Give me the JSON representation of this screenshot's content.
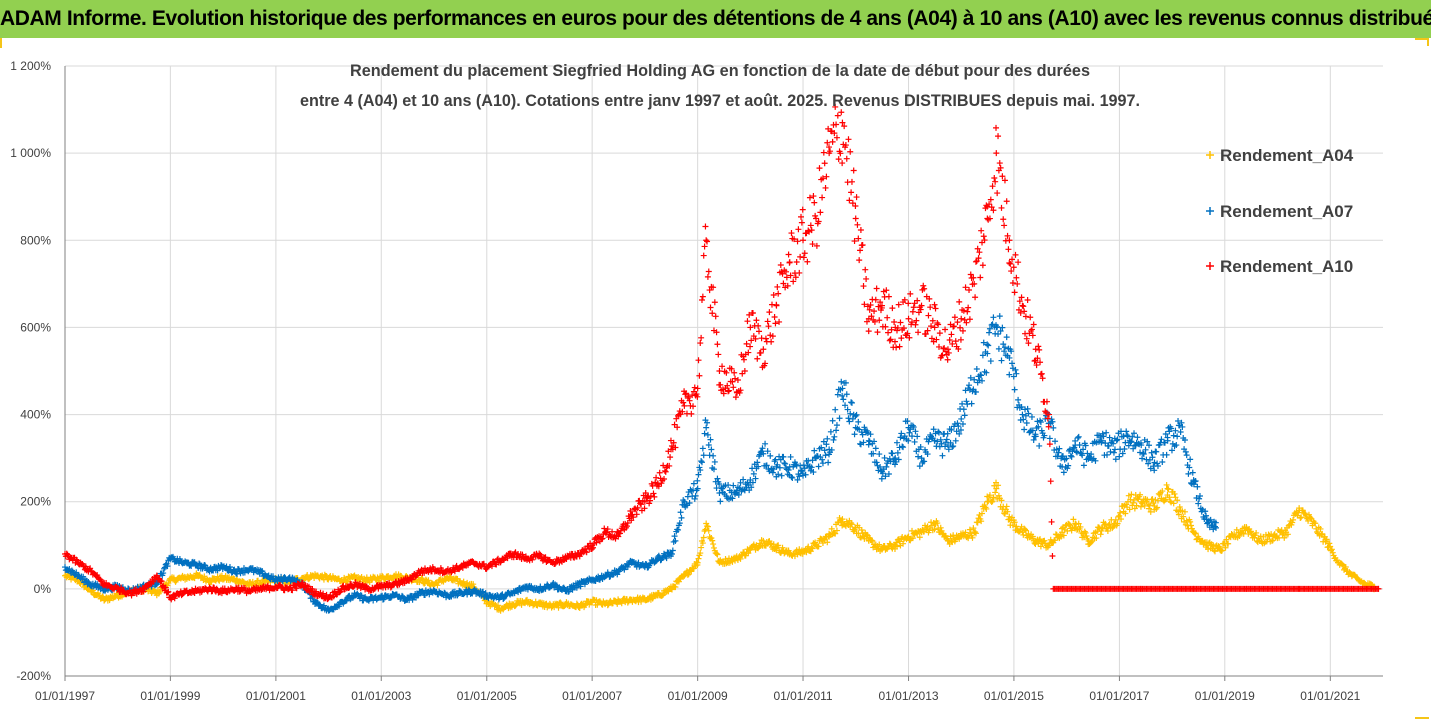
{
  "banner": {
    "title": "ADAM Informe. Evolution historique des performances en euros pour des détentions de 4 ans (A04) à 10 ans (A10) avec les revenus connus distribués"
  },
  "colors": {
    "banner_bg": "#92d050",
    "A04": "#ffc000",
    "A07": "#0070c0",
    "A10": "#ff0000",
    "grid": "#d9d9d9",
    "corner": "#f5c518"
  },
  "chart_data": {
    "type": "scatter",
    "title_lines": [
      "Rendement du placement Siegfried  Holding AG en fonction de la date de début pour des durées",
      "entre 4 (A04) et 10 ans (A10). Cotations entre janv 1997 et août. 2025. Revenus DISTRIBUES depuis mai. 1997."
    ],
    "xlabel": "",
    "ylabel": "",
    "x_axis_type": "date",
    "xlim": [
      "1997-01-01",
      "2022-01-01"
    ],
    "ylim": [
      -200,
      1200
    ],
    "y_ticks": [
      "1 200%",
      "1 000%",
      "800%",
      "600%",
      "400%",
      "200%",
      "0%",
      "-200%"
    ],
    "y_tick_values": [
      1200,
      1000,
      800,
      600,
      400,
      200,
      0,
      -200
    ],
    "x_ticks": [
      "01/01/1997",
      "01/01/1999",
      "01/01/2001",
      "01/01/2003",
      "01/01/2005",
      "01/01/2007",
      "01/01/2009",
      "01/01/2011",
      "01/01/2013",
      "01/01/2015",
      "01/01/2017",
      "01/01/2019",
      "01/01/2021"
    ],
    "grid": true,
    "legend_position": "right",
    "marker": "+",
    "series": [
      {
        "name": "Rendement_A04",
        "color": "#ffc000",
        "points": [
          [
            "1997-01-01",
            30
          ],
          [
            "1997-04-01",
            20
          ],
          [
            "1997-07-01",
            -5
          ],
          [
            "1997-10-01",
            -25
          ],
          [
            "1998-01-01",
            -15
          ],
          [
            "1998-04-01",
            -5
          ],
          [
            "1998-07-01",
            0
          ],
          [
            "1998-10-01",
            -10
          ],
          [
            "1999-01-01",
            20
          ],
          [
            "1999-04-01",
            25
          ],
          [
            "1999-07-01",
            30
          ],
          [
            "1999-10-01",
            20
          ],
          [
            "2000-01-01",
            25
          ],
          [
            "2000-04-01",
            20
          ],
          [
            "2000-07-01",
            10
          ],
          [
            "2000-10-01",
            15
          ],
          [
            "2001-01-01",
            20
          ],
          [
            "2001-04-01",
            15
          ],
          [
            "2001-07-01",
            25
          ],
          [
            "2001-10-01",
            30
          ],
          [
            "2002-01-01",
            25
          ],
          [
            "2002-04-01",
            20
          ],
          [
            "2002-07-01",
            25
          ],
          [
            "2002-10-01",
            20
          ],
          [
            "2003-01-01",
            25
          ],
          [
            "2003-04-01",
            30
          ],
          [
            "2003-07-01",
            25
          ],
          [
            "2003-10-01",
            20
          ],
          [
            "2004-01-01",
            10
          ],
          [
            "2004-04-01",
            25
          ],
          [
            "2004-07-01",
            15
          ],
          [
            "2004-10-01",
            5
          ],
          [
            "2005-01-01",
            -30
          ],
          [
            "2005-04-01",
            -45
          ],
          [
            "2005-07-01",
            -35
          ],
          [
            "2005-10-01",
            -30
          ],
          [
            "2006-01-01",
            -35
          ],
          [
            "2006-04-01",
            -40
          ],
          [
            "2006-07-01",
            -35
          ],
          [
            "2006-10-01",
            -40
          ],
          [
            "2007-01-01",
            -30
          ],
          [
            "2007-04-01",
            -35
          ],
          [
            "2007-07-01",
            -30
          ],
          [
            "2007-10-01",
            -25
          ],
          [
            "2008-01-01",
            -25
          ],
          [
            "2008-04-01",
            -15
          ],
          [
            "2008-07-01",
            0
          ],
          [
            "2008-10-01",
            30
          ],
          [
            "2009-01-01",
            60
          ],
          [
            "2009-03-01",
            150
          ],
          [
            "2009-06-01",
            60
          ],
          [
            "2009-10-01",
            70
          ],
          [
            "2010-01-01",
            90
          ],
          [
            "2010-04-01",
            110
          ],
          [
            "2010-07-01",
            95
          ],
          [
            "2010-10-01",
            80
          ],
          [
            "2011-01-01",
            85
          ],
          [
            "2011-04-01",
            100
          ],
          [
            "2011-07-01",
            120
          ],
          [
            "2011-10-01",
            160
          ],
          [
            "2012-01-01",
            140
          ],
          [
            "2012-04-01",
            110
          ],
          [
            "2012-07-01",
            90
          ],
          [
            "2012-10-01",
            100
          ],
          [
            "2013-01-01",
            120
          ],
          [
            "2013-04-01",
            130
          ],
          [
            "2013-07-01",
            150
          ],
          [
            "2013-10-01",
            110
          ],
          [
            "2014-01-01",
            120
          ],
          [
            "2014-04-01",
            130
          ],
          [
            "2014-07-01",
            200
          ],
          [
            "2014-09-01",
            230
          ],
          [
            "2014-12-01",
            160
          ],
          [
            "2015-03-01",
            130
          ],
          [
            "2015-06-01",
            110
          ],
          [
            "2015-09-01",
            100
          ],
          [
            "2015-12-01",
            130
          ],
          [
            "2016-03-01",
            150
          ],
          [
            "2016-06-01",
            110
          ],
          [
            "2016-09-01",
            140
          ],
          [
            "2016-12-01",
            150
          ],
          [
            "2017-03-01",
            200
          ],
          [
            "2017-06-01",
            200
          ],
          [
            "2017-09-01",
            190
          ],
          [
            "2017-12-01",
            230
          ],
          [
            "2018-03-01",
            180
          ],
          [
            "2018-06-01",
            130
          ],
          [
            "2018-09-01",
            100
          ],
          [
            "2018-12-01",
            90
          ],
          [
            "2019-03-01",
            120
          ],
          [
            "2019-06-01",
            140
          ],
          [
            "2019-09-01",
            110
          ],
          [
            "2019-12-01",
            120
          ],
          [
            "2020-03-01",
            130
          ],
          [
            "2020-06-01",
            180
          ],
          [
            "2020-09-01",
            150
          ],
          [
            "2020-12-01",
            110
          ],
          [
            "2021-03-01",
            60
          ],
          [
            "2021-06-01",
            30
          ],
          [
            "2021-09-01",
            10
          ],
          [
            "2021-11-01",
            5
          ]
        ]
      },
      {
        "name": "Rendement_A07",
        "color": "#0070c0",
        "points": [
          [
            "1997-01-01",
            50
          ],
          [
            "1997-04-01",
            30
          ],
          [
            "1997-07-01",
            10
          ],
          [
            "1997-10-01",
            0
          ],
          [
            "1998-01-01",
            5
          ],
          [
            "1998-04-01",
            -5
          ],
          [
            "1998-07-01",
            5
          ],
          [
            "1998-10-01",
            15
          ],
          [
            "1999-01-01",
            70
          ],
          [
            "1999-04-01",
            60
          ],
          [
            "1999-07-01",
            55
          ],
          [
            "1999-10-01",
            45
          ],
          [
            "2000-01-01",
            50
          ],
          [
            "2000-04-01",
            40
          ],
          [
            "2000-07-01",
            45
          ],
          [
            "2000-10-01",
            35
          ],
          [
            "2001-01-01",
            20
          ],
          [
            "2001-04-01",
            25
          ],
          [
            "2001-07-01",
            10
          ],
          [
            "2001-10-01",
            -30
          ],
          [
            "2002-01-01",
            -50
          ],
          [
            "2002-04-01",
            -30
          ],
          [
            "2002-07-01",
            -15
          ],
          [
            "2002-10-01",
            -25
          ],
          [
            "2003-01-01",
            -20
          ],
          [
            "2003-04-01",
            -15
          ],
          [
            "2003-07-01",
            -25
          ],
          [
            "2003-10-01",
            -10
          ],
          [
            "2004-01-01",
            -5
          ],
          [
            "2004-04-01",
            -15
          ],
          [
            "2004-07-01",
            -10
          ],
          [
            "2004-10-01",
            -5
          ],
          [
            "2005-01-01",
            -15
          ],
          [
            "2005-04-01",
            -20
          ],
          [
            "2005-07-01",
            -10
          ],
          [
            "2005-10-01",
            5
          ],
          [
            "2006-01-01",
            0
          ],
          [
            "2006-04-01",
            10
          ],
          [
            "2006-07-01",
            -5
          ],
          [
            "2006-10-01",
            10
          ],
          [
            "2007-01-01",
            20
          ],
          [
            "2007-04-01",
            30
          ],
          [
            "2007-07-01",
            40
          ],
          [
            "2007-10-01",
            60
          ],
          [
            "2008-01-01",
            50
          ],
          [
            "2008-04-01",
            70
          ],
          [
            "2008-07-01",
            80
          ],
          [
            "2008-10-01",
            200
          ],
          [
            "2009-01-01",
            230
          ],
          [
            "2009-03-01",
            370
          ],
          [
            "2009-06-01",
            220
          ],
          [
            "2009-10-01",
            220
          ],
          [
            "2010-01-01",
            250
          ],
          [
            "2010-04-01",
            310
          ],
          [
            "2010-07-01",
            280
          ],
          [
            "2010-10-01",
            280
          ],
          [
            "2011-01-01",
            260
          ],
          [
            "2011-04-01",
            300
          ],
          [
            "2011-07-01",
            320
          ],
          [
            "2011-10-01",
            460
          ],
          [
            "2012-01-01",
            370
          ],
          [
            "2012-04-01",
            340
          ],
          [
            "2012-07-01",
            270
          ],
          [
            "2012-10-01",
            300
          ],
          [
            "2013-01-01",
            370
          ],
          [
            "2013-04-01",
            300
          ],
          [
            "2013-07-01",
            340
          ],
          [
            "2013-10-01",
            330
          ],
          [
            "2014-01-01",
            390
          ],
          [
            "2014-04-01",
            480
          ],
          [
            "2014-07-01",
            540
          ],
          [
            "2014-09-01",
            600
          ],
          [
            "2014-12-01",
            530
          ],
          [
            "2015-03-01",
            400
          ],
          [
            "2015-06-01",
            350
          ],
          [
            "2015-09-01",
            380
          ],
          [
            "2015-12-01",
            280
          ],
          [
            "2016-03-01",
            330
          ],
          [
            "2016-06-01",
            300
          ],
          [
            "2016-09-01",
            340
          ],
          [
            "2016-12-01",
            320
          ],
          [
            "2017-03-01",
            350
          ],
          [
            "2017-06-01",
            330
          ],
          [
            "2017-09-01",
            290
          ],
          [
            "2017-12-01",
            340
          ],
          [
            "2018-03-01",
            360
          ],
          [
            "2018-06-01",
            240
          ],
          [
            "2018-09-01",
            150
          ],
          [
            "2018-11-01",
            140
          ]
        ]
      },
      {
        "name": "Rendement_A10",
        "color": "#ff0000",
        "points": [
          [
            "1997-01-01",
            80
          ],
          [
            "1997-04-01",
            60
          ],
          [
            "1997-07-01",
            40
          ],
          [
            "1997-10-01",
            10
          ],
          [
            "1998-01-01",
            0
          ],
          [
            "1998-04-01",
            -10
          ],
          [
            "1998-07-01",
            0
          ],
          [
            "1998-10-01",
            30
          ],
          [
            "1999-01-01",
            -20
          ],
          [
            "1999-04-01",
            -10
          ],
          [
            "1999-07-01",
            -5
          ],
          [
            "1999-10-01",
            0
          ],
          [
            "2000-01-01",
            -5
          ],
          [
            "2000-04-01",
            0
          ],
          [
            "2000-07-01",
            -5
          ],
          [
            "2000-10-01",
            0
          ],
          [
            "2001-01-01",
            5
          ],
          [
            "2001-04-01",
            0
          ],
          [
            "2001-07-01",
            10
          ],
          [
            "2001-10-01",
            -10
          ],
          [
            "2002-01-01",
            -20
          ],
          [
            "2002-04-01",
            0
          ],
          [
            "2002-07-01",
            10
          ],
          [
            "2002-10-01",
            0
          ],
          [
            "2003-01-01",
            5
          ],
          [
            "2003-04-01",
            10
          ],
          [
            "2003-07-01",
            20
          ],
          [
            "2003-10-01",
            40
          ],
          [
            "2004-01-01",
            45
          ],
          [
            "2004-04-01",
            40
          ],
          [
            "2004-07-01",
            50
          ],
          [
            "2004-10-01",
            60
          ],
          [
            "2005-01-01",
            50
          ],
          [
            "2005-04-01",
            65
          ],
          [
            "2005-07-01",
            80
          ],
          [
            "2005-10-01",
            70
          ],
          [
            "2006-01-01",
            75
          ],
          [
            "2006-04-01",
            60
          ],
          [
            "2006-07-01",
            70
          ],
          [
            "2006-10-01",
            80
          ],
          [
            "2007-01-01",
            100
          ],
          [
            "2007-04-01",
            130
          ],
          [
            "2007-07-01",
            120
          ],
          [
            "2007-10-01",
            170
          ],
          [
            "2008-01-01",
            200
          ],
          [
            "2008-04-01",
            240
          ],
          [
            "2008-07-01",
            320
          ],
          [
            "2008-10-01",
            420
          ],
          [
            "2009-01-01",
            460
          ],
          [
            "2009-03-01",
            800
          ],
          [
            "2009-06-01",
            500
          ],
          [
            "2009-10-01",
            450
          ],
          [
            "2010-01-01",
            600
          ],
          [
            "2010-04-01",
            550
          ],
          [
            "2010-07-01",
            650
          ],
          [
            "2010-10-01",
            750
          ],
          [
            "2011-01-01",
            800
          ],
          [
            "2011-04-01",
            850
          ],
          [
            "2011-07-01",
            1000
          ],
          [
            "2011-10-01",
            1070
          ],
          [
            "2012-01-01",
            850
          ],
          [
            "2012-04-01",
            620
          ],
          [
            "2012-07-01",
            650
          ],
          [
            "2012-10-01",
            600
          ],
          [
            "2013-01-01",
            620
          ],
          [
            "2013-04-01",
            650
          ],
          [
            "2013-07-01",
            600
          ],
          [
            "2013-10-01",
            550
          ],
          [
            "2014-01-01",
            620
          ],
          [
            "2014-04-01",
            700
          ],
          [
            "2014-07-01",
            850
          ],
          [
            "2014-09-01",
            1000
          ],
          [
            "2014-12-01",
            800
          ],
          [
            "2015-03-01",
            650
          ],
          [
            "2015-06-01",
            550
          ],
          [
            "2015-09-01",
            400
          ],
          [
            "2015-10-01",
            0
          ],
          [
            "2016-06-01",
            0
          ],
          [
            "2017-06-01",
            0
          ],
          [
            "2018-06-01",
            0
          ],
          [
            "2019-06-01",
            0
          ],
          [
            "2020-06-01",
            0
          ],
          [
            "2021-06-01",
            0
          ],
          [
            "2021-12-01",
            0
          ]
        ]
      }
    ]
  }
}
